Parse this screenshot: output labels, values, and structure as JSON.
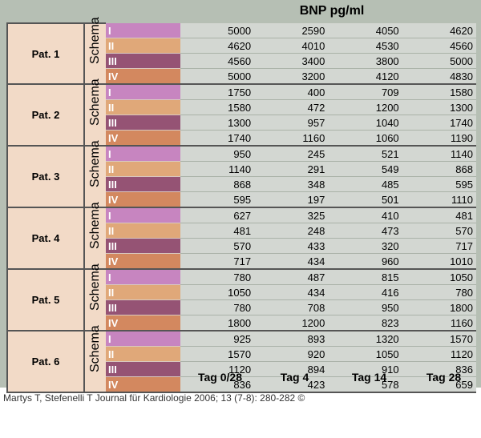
{
  "header": {
    "title": "BNP pg/ml"
  },
  "schema_label": "Schema",
  "columns": [
    "Tag 0/28",
    "Tag 4",
    "Tag 14",
    "Tag 28"
  ],
  "schema_levels": [
    "I",
    "II",
    "III",
    "IV"
  ],
  "schema_colors": [
    "#c785c0",
    "#e0a879",
    "#955374",
    "#d3885f"
  ],
  "patients": [
    {
      "label": "Pat. 1",
      "rows": [
        [
          "5000",
          "2590",
          "4050",
          "4620"
        ],
        [
          "4620",
          "4010",
          "4530",
          "4560"
        ],
        [
          "4560",
          "3400",
          "3800",
          "5000"
        ],
        [
          "5000",
          "3200",
          "4120",
          "4830"
        ]
      ]
    },
    {
      "label": "Pat. 2",
      "rows": [
        [
          "1750",
          "400",
          "709",
          "1580"
        ],
        [
          "1580",
          "472",
          "1200",
          "1300"
        ],
        [
          "1300",
          "957",
          "1040",
          "1740"
        ],
        [
          "1740",
          "1160",
          "1060",
          "1190"
        ]
      ]
    },
    {
      "label": "Pat. 3",
      "rows": [
        [
          "950",
          "245",
          "521",
          "1140"
        ],
        [
          "1140",
          "291",
          "549",
          "868"
        ],
        [
          "868",
          "348",
          "485",
          "595"
        ],
        [
          "595",
          "197",
          "501",
          "1110"
        ]
      ]
    },
    {
      "label": "Pat. 4",
      "rows": [
        [
          "627",
          "325",
          "410",
          "481"
        ],
        [
          "481",
          "248",
          "473",
          "570"
        ],
        [
          "570",
          "433",
          "320",
          "717"
        ],
        [
          "717",
          "434",
          "960",
          "1010"
        ]
      ]
    },
    {
      "label": "Pat. 5",
      "rows": [
        [
          "780",
          "487",
          "815",
          "1050"
        ],
        [
          "1050",
          "434",
          "416",
          "780"
        ],
        [
          "780",
          "708",
          "950",
          "1800"
        ],
        [
          "1800",
          "1200",
          "823",
          "1160"
        ]
      ]
    },
    {
      "label": "Pat. 6",
      "rows": [
        [
          "925",
          "893",
          "1320",
          "1570"
        ],
        [
          "1570",
          "920",
          "1050",
          "1120"
        ],
        [
          "1120",
          "894",
          "910",
          "836"
        ],
        [
          "836",
          "423",
          "578",
          "659"
        ]
      ]
    }
  ],
  "caption": "Martys T, Stefenelli T Journal für Kardiologie 2006; 13 (7-8): 280-282 ©"
}
